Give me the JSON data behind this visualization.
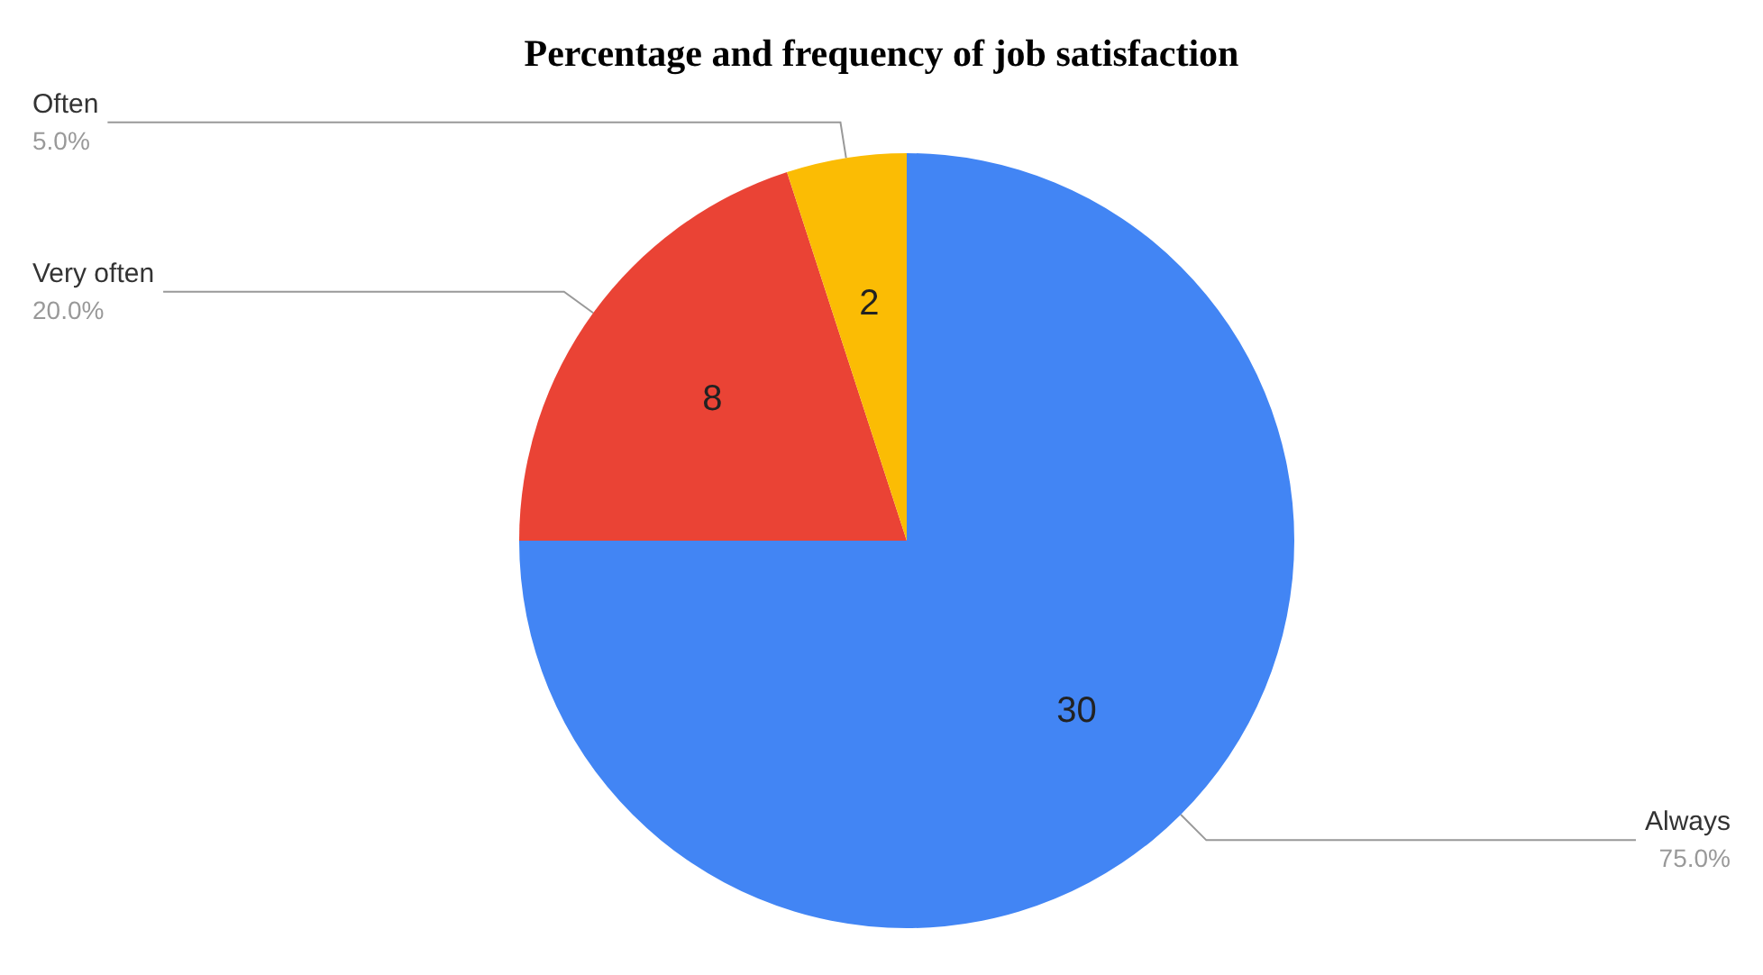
{
  "chart_data": {
    "type": "pie",
    "title": "Percentage and frequency of job satisfaction",
    "categories": [
      "Always",
      "Very often",
      "Often"
    ],
    "values": [
      30,
      8,
      2
    ],
    "colors": [
      "#4285f4",
      "#ea4335",
      "#fbbc04"
    ],
    "annotations": [
      "75.0%",
      "20.0%",
      "5.0%"
    ],
    "data_labels": true,
    "legend": false
  }
}
